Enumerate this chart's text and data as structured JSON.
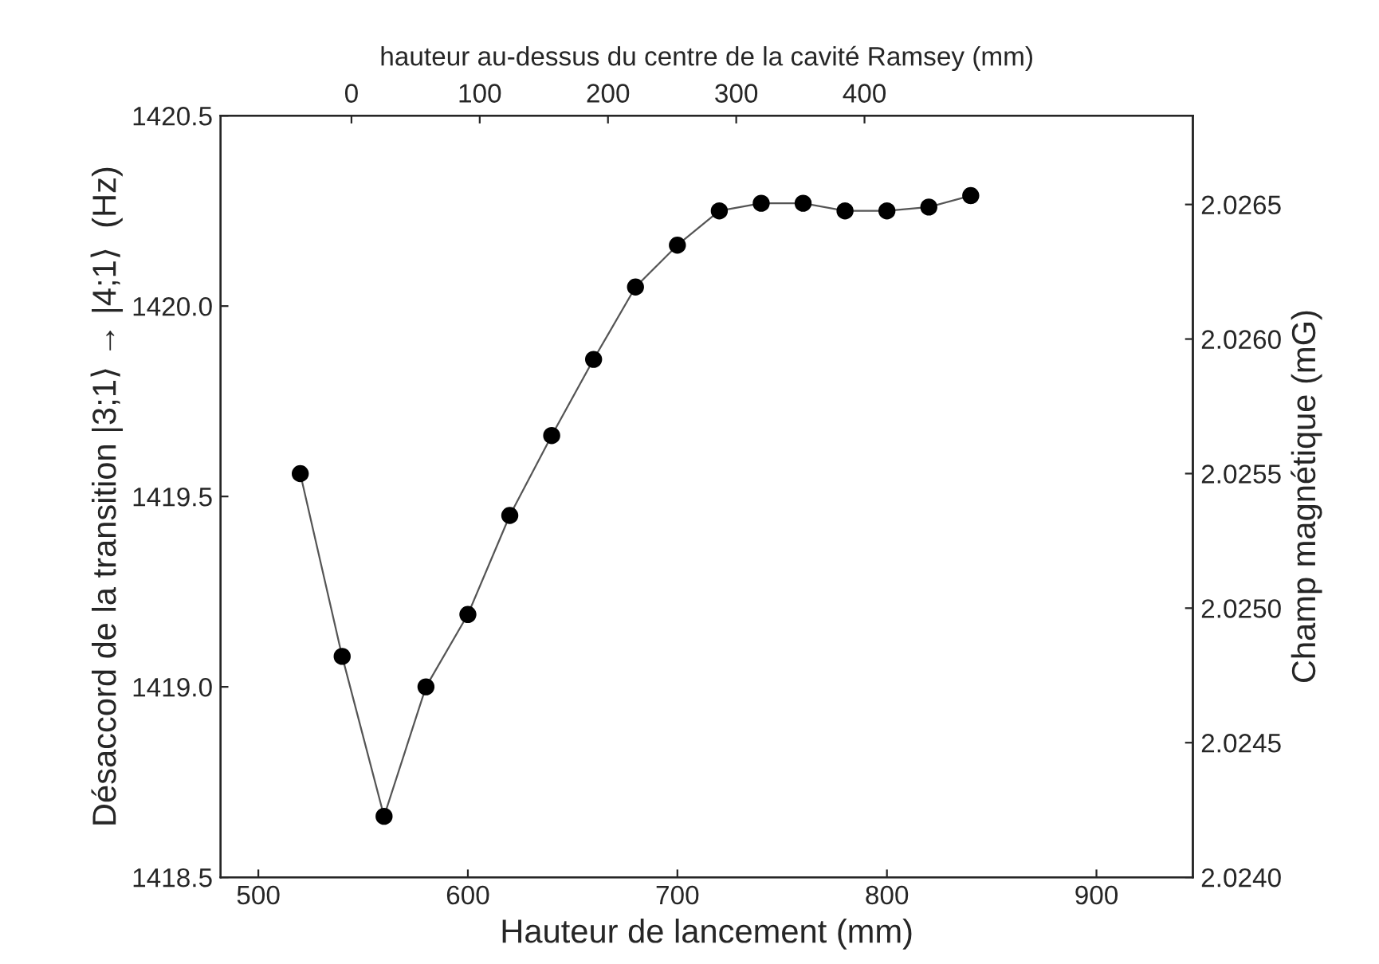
{
  "chart_data": {
    "type": "line",
    "xlabel": "Hauteur de lancement (mm)",
    "ylabel": "Désaccord de la transition |3;1⟩ → |4;1⟩  (Hz)",
    "y2label": "Champ magnétique (mG)",
    "x2label": "hauteur au-dessus du centre de la cavité Ramsey (mm)",
    "x": [
      520,
      540,
      560,
      580,
      600,
      620,
      640,
      660,
      680,
      700,
      720,
      740,
      760,
      780,
      800,
      820,
      840
    ],
    "series": [
      {
        "color": "#000000",
        "values": [
          1419.56,
          1419.08,
          1418.66,
          1419.0,
          1419.19,
          1419.45,
          1419.66,
          1419.86,
          1420.05,
          1420.16,
          1420.25,
          1420.27,
          1420.27,
          1420.25,
          1420.25,
          1420.26,
          1420.29
        ]
      }
    ],
    "xlim": [
      482,
      946
    ],
    "xticks": [
      500,
      600,
      700,
      800,
      900
    ],
    "ylim": [
      1418.5,
      1420.5
    ],
    "yticks": [
      {
        "value": 1418.5,
        "label": "1418.5"
      },
      {
        "value": 1419.0,
        "label": "1419.0"
      },
      {
        "value": 1419.5,
        "label": "1419.5"
      },
      {
        "value": 1420.0,
        "label": "1420.0"
      },
      {
        "value": 1420.5,
        "label": "1420.5"
      }
    ],
    "y2lim": [
      2.024,
      2.02683
    ],
    "y2ticks": [
      {
        "value": 2.024,
        "label": "2.0240"
      },
      {
        "value": 2.0245,
        "label": "2.0245"
      },
      {
        "value": 2.025,
        "label": "2.0250"
      },
      {
        "value": 2.0255,
        "label": "2.0255"
      },
      {
        "value": 2.026,
        "label": "2.0260"
      },
      {
        "value": 2.0265,
        "label": "2.0265"
      }
    ],
    "x2lim": [
      -102,
      656
    ],
    "x2ticks": [
      0,
      100,
      200,
      300,
      400
    ],
    "marker": "circle",
    "line_style": "solid",
    "grid": false,
    "legend": false
  }
}
